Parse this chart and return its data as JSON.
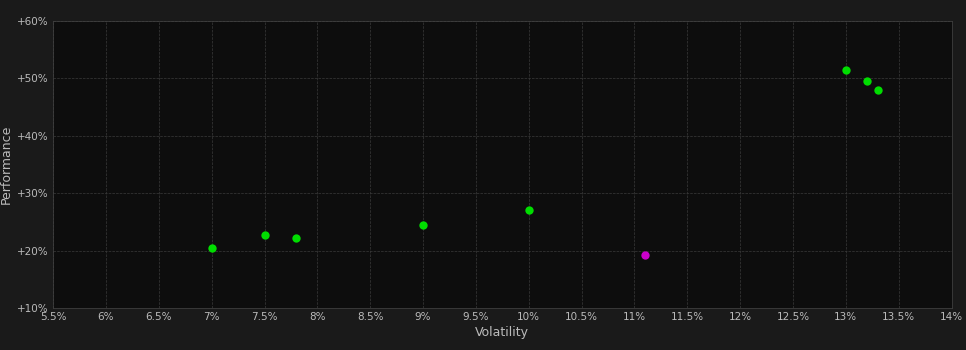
{
  "xlabel": "Volatility",
  "ylabel": "Performance",
  "background_color": "#1a1a1a",
  "plot_bg_color": "#0d0d0d",
  "grid_color": "#3a3a3a",
  "text_color": "#bbbbbb",
  "xlim": [
    0.055,
    0.14
  ],
  "ylim": [
    0.1,
    0.6
  ],
  "xticks": [
    0.055,
    0.06,
    0.065,
    0.07,
    0.075,
    0.08,
    0.085,
    0.09,
    0.095,
    0.1,
    0.105,
    0.11,
    0.115,
    0.12,
    0.125,
    0.13,
    0.135,
    0.14
  ],
  "yticks": [
    0.1,
    0.2,
    0.3,
    0.4,
    0.5,
    0.6
  ],
  "xtick_labels": [
    "5.5%",
    "6%",
    "6.5%",
    "7%",
    "7.5%",
    "8%",
    "8.5%",
    "9%",
    "9.5%",
    "10%",
    "10.5%",
    "11%",
    "11.5%",
    "12%",
    "12.5%",
    "13%",
    "13.5%",
    "14%"
  ],
  "ytick_labels": [
    "+10%",
    "+20%",
    "+30%",
    "+40%",
    "+50%",
    "+60%"
  ],
  "green_points": [
    [
      0.07,
      0.205
    ],
    [
      0.075,
      0.228
    ],
    [
      0.078,
      0.222
    ],
    [
      0.09,
      0.245
    ],
    [
      0.1,
      0.27
    ],
    [
      0.13,
      0.515
    ],
    [
      0.132,
      0.495
    ],
    [
      0.133,
      0.48
    ]
  ],
  "magenta_points": [
    [
      0.111,
      0.192
    ]
  ],
  "green_color": "#00dd00",
  "magenta_color": "#cc00cc",
  "marker_size": 6
}
